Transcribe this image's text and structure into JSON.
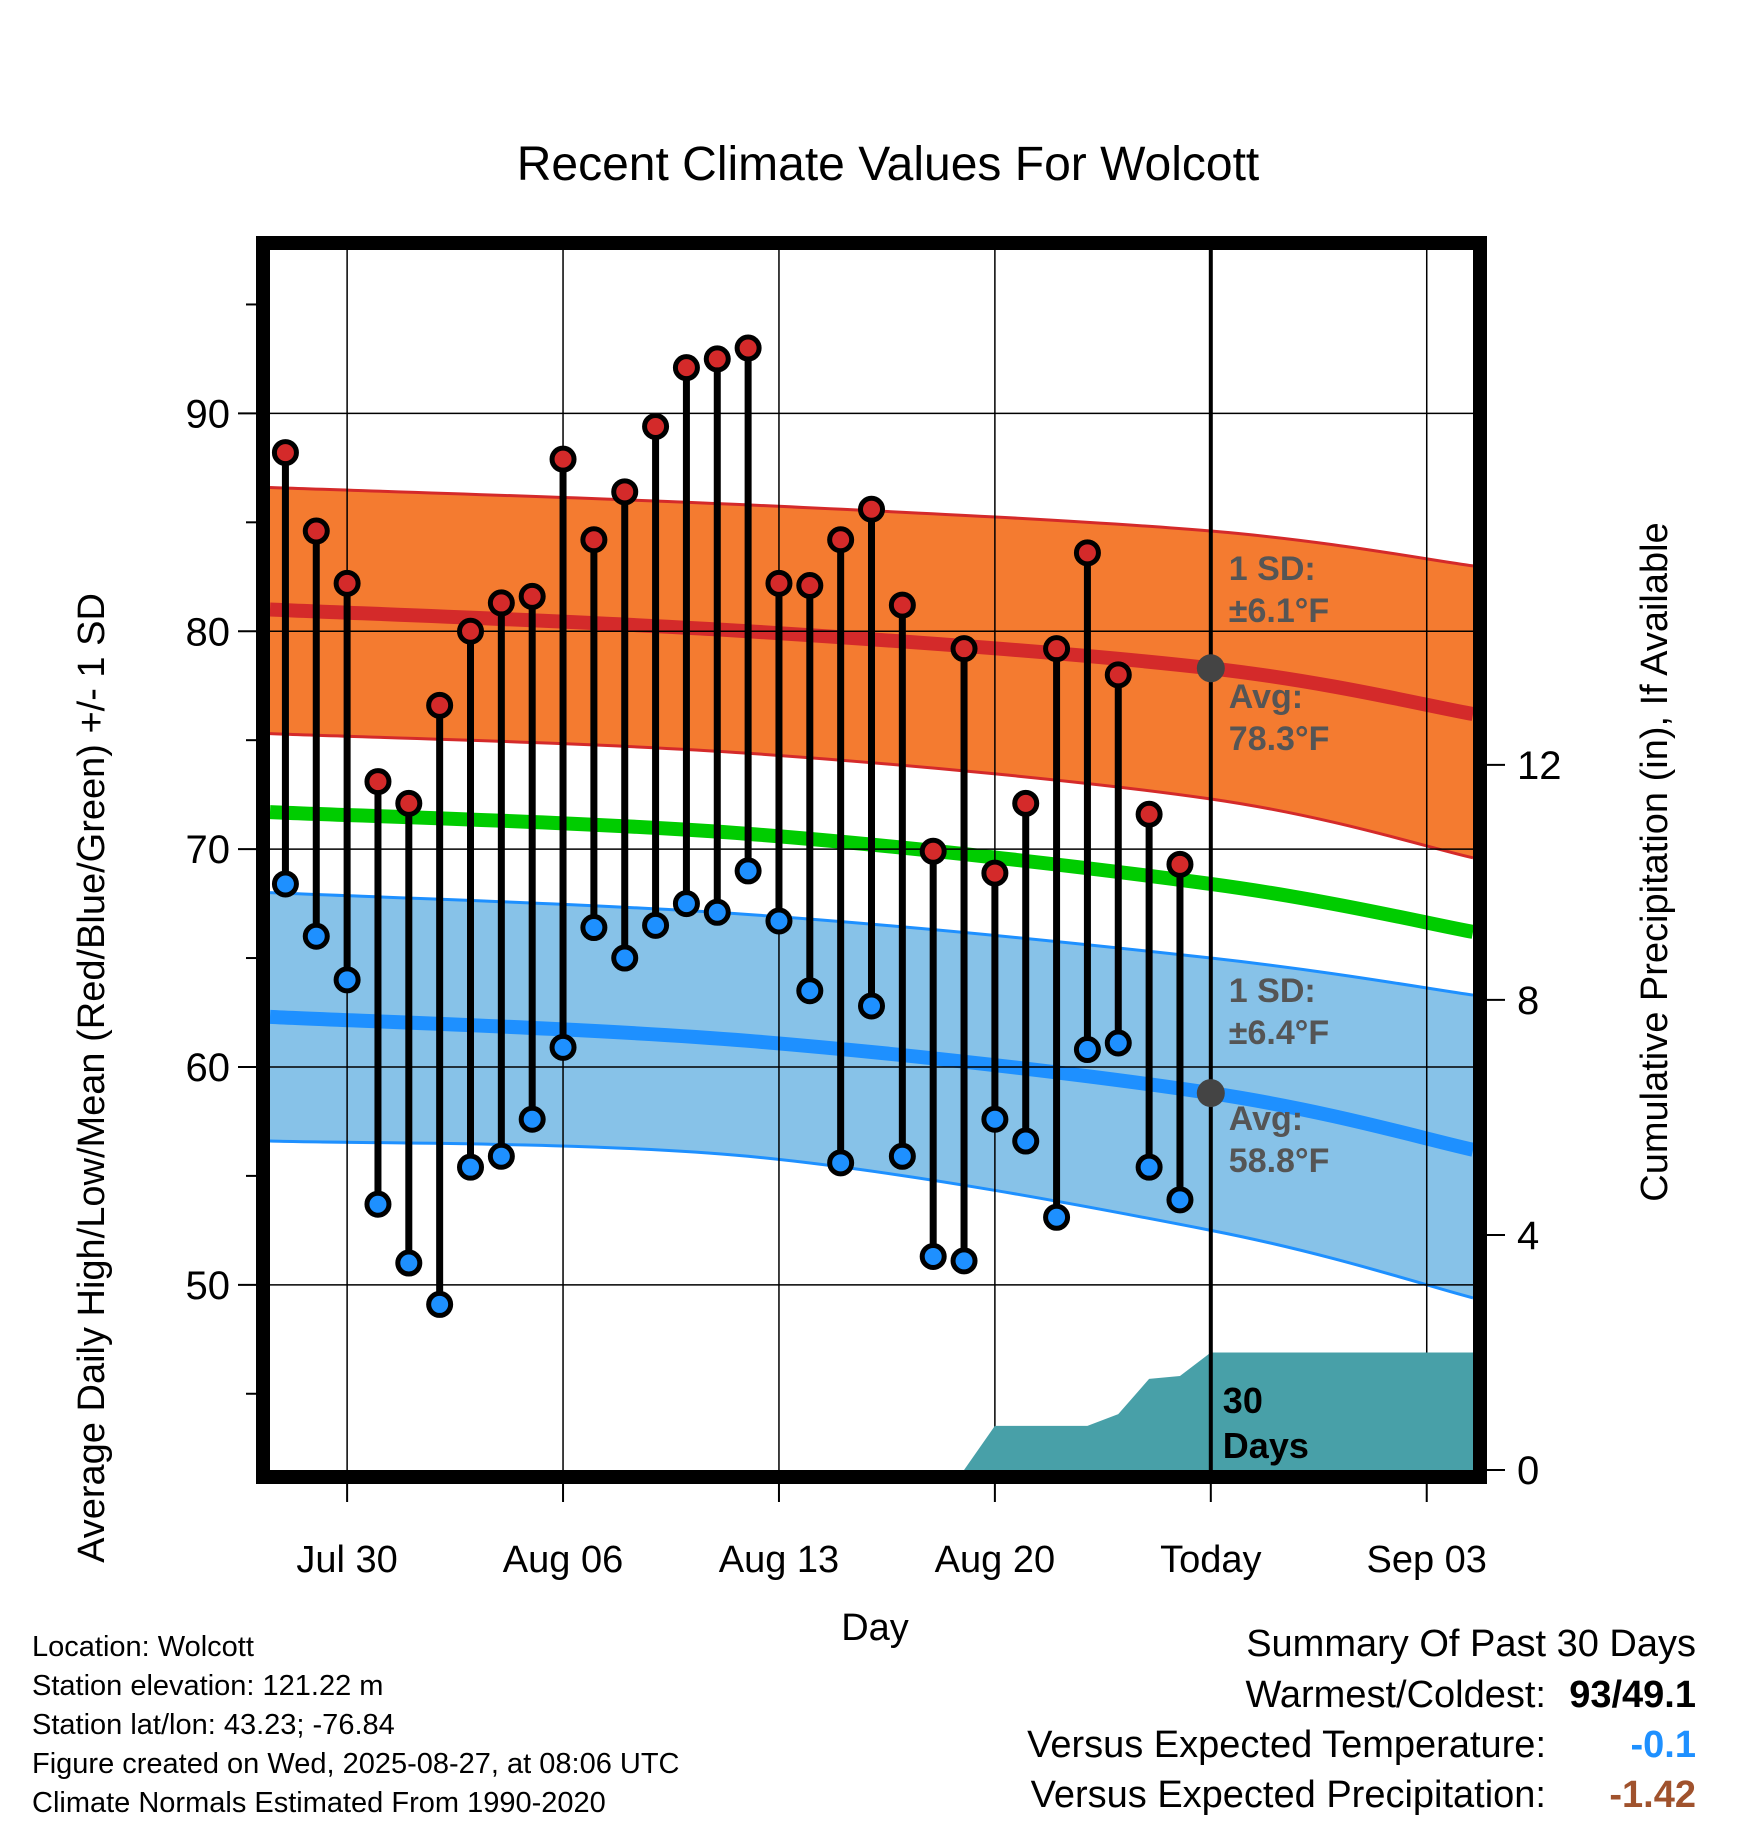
{
  "chart_data": {
    "type": "line",
    "title": "Recent Climate Values For Wolcott",
    "xlabel": "Day",
    "ylabel": "Average Daily High/Low/Mean (Red/Blue/Green) +/- 1 SD",
    "y2label": "Cumulative Precipitation (in), If Available",
    "ylim": [
      41.5,
      97.5
    ],
    "yticks": [
      "50",
      "60",
      "70",
      "80",
      "90"
    ],
    "y2lim": [
      0,
      21
    ],
    "y2ticks": [
      "0",
      "4",
      "8",
      "12"
    ],
    "xlim": [
      "Jul 27",
      "Sep 05"
    ],
    "xtick_labels": [
      "Jul 30",
      "Aug 06",
      "Aug 13",
      "Aug 20",
      "Today",
      "Sep 03"
    ],
    "xtick_dates": [
      "Jul 30",
      "Aug 06",
      "Aug 13",
      "Aug 20",
      "Aug 27",
      "Sep 03"
    ],
    "grid": true,
    "days": [
      "Jul 28",
      "Jul 29",
      "Jul 30",
      "Jul 31",
      "Aug 01",
      "Aug 02",
      "Aug 03",
      "Aug 04",
      "Aug 05",
      "Aug 06",
      "Aug 07",
      "Aug 08",
      "Aug 09",
      "Aug 10",
      "Aug 11",
      "Aug 12",
      "Aug 13",
      "Aug 14",
      "Aug 15",
      "Aug 16",
      "Aug 17",
      "Aug 18",
      "Aug 19",
      "Aug 20",
      "Aug 21",
      "Aug 22",
      "Aug 23",
      "Aug 24",
      "Aug 25",
      "Aug 26"
    ],
    "series": [
      {
        "name": "High",
        "color": "#d42a2a",
        "values": [
          88.2,
          84.6,
          82.2,
          73.1,
          72.1,
          76.6,
          80.0,
          81.3,
          81.6,
          87.9,
          84.2,
          86.4,
          89.4,
          92.1,
          92.5,
          93.0,
          82.2,
          82.1,
          84.2,
          85.6,
          81.2,
          69.9,
          79.2,
          68.9,
          72.1,
          79.2,
          83.6,
          78.0,
          71.6,
          69.3
        ]
      },
      {
        "name": "Low",
        "color": "#1e90ff",
        "values": [
          68.4,
          66.0,
          64.0,
          53.7,
          51.0,
          49.1,
          55.4,
          55.9,
          57.6,
          60.9,
          66.4,
          65.0,
          66.5,
          67.5,
          67.1,
          69.0,
          66.7,
          63.5,
          55.6,
          62.8,
          55.9,
          51.3,
          51.1,
          57.6,
          56.6,
          53.1,
          60.8,
          61.1,
          55.4,
          53.9
        ]
      }
    ],
    "normals": {
      "high_avg": [
        81.0,
        80.0,
        78.3,
        76.2
      ],
      "high_sd_upper": [
        86.6,
        85.8,
        84.6,
        83.0
      ],
      "high_sd_lower": [
        75.3,
        74.4,
        72.3,
        69.6
      ],
      "mean_avg": [
        71.7,
        70.7,
        68.4,
        66.2
      ],
      "low_avg": [
        62.3,
        61.2,
        58.8,
        56.2
      ],
      "low_sd_upper": [
        68.0,
        67.0,
        65.0,
        63.3
      ],
      "low_sd_lower": [
        56.6,
        55.9,
        52.5,
        49.4
      ],
      "dates": [
        "Jul 27",
        "Aug 12",
        "Aug 27",
        "Sep 05"
      ]
    },
    "precipitation": {
      "dates": [
        "Aug 19",
        "Aug 20",
        "Aug 23",
        "Aug 24",
        "Aug 25",
        "Aug 26",
        "Aug 27",
        "Sep 05"
      ],
      "values": [
        0.0,
        0.75,
        0.75,
        0.95,
        1.55,
        1.6,
        2.0,
        2.0
      ],
      "color": "#48a0a8"
    },
    "annotations": {
      "high_sd_label": "1 SD:",
      "high_sd_value": "±6.1°F",
      "high_avg_label": "Avg:",
      "high_avg_value": "78.3°F",
      "low_sd_label": "1 SD:",
      "low_sd_value": "±6.4°F",
      "low_avg_label": "Avg:",
      "low_avg_value": "58.8°F",
      "days_label": "30",
      "days_label2": "Days"
    },
    "colors": {
      "high_band": "#f47b30",
      "high_line": "#d42a2a",
      "mean_line": "#00cc00",
      "low_band": "#87c2e8",
      "low_line": "#1e90ff",
      "precip": "#48a0a8",
      "annotation_text": "#555555"
    }
  },
  "footer": {
    "location": "Location: Wolcott",
    "elevation": "Station elevation: 121.22 m",
    "latlon": "Station lat/lon: 43.23; -76.84",
    "created": "Figure created on Wed, 2025-08-27, at 08:06 UTC",
    "normals": "Climate Normals Estimated From 1990-2020"
  },
  "summary": {
    "title": "Summary Of Past 30 Days",
    "warmest_label": "Warmest/Coldest:",
    "warmest_value": "93/49.1",
    "temp_label": "Versus Expected Temperature:",
    "temp_value": "-0.1",
    "temp_color": "#1e90ff",
    "precip_label": "Versus Expected Precipitation:",
    "precip_value": "-1.42",
    "precip_color": "#a0522d"
  }
}
